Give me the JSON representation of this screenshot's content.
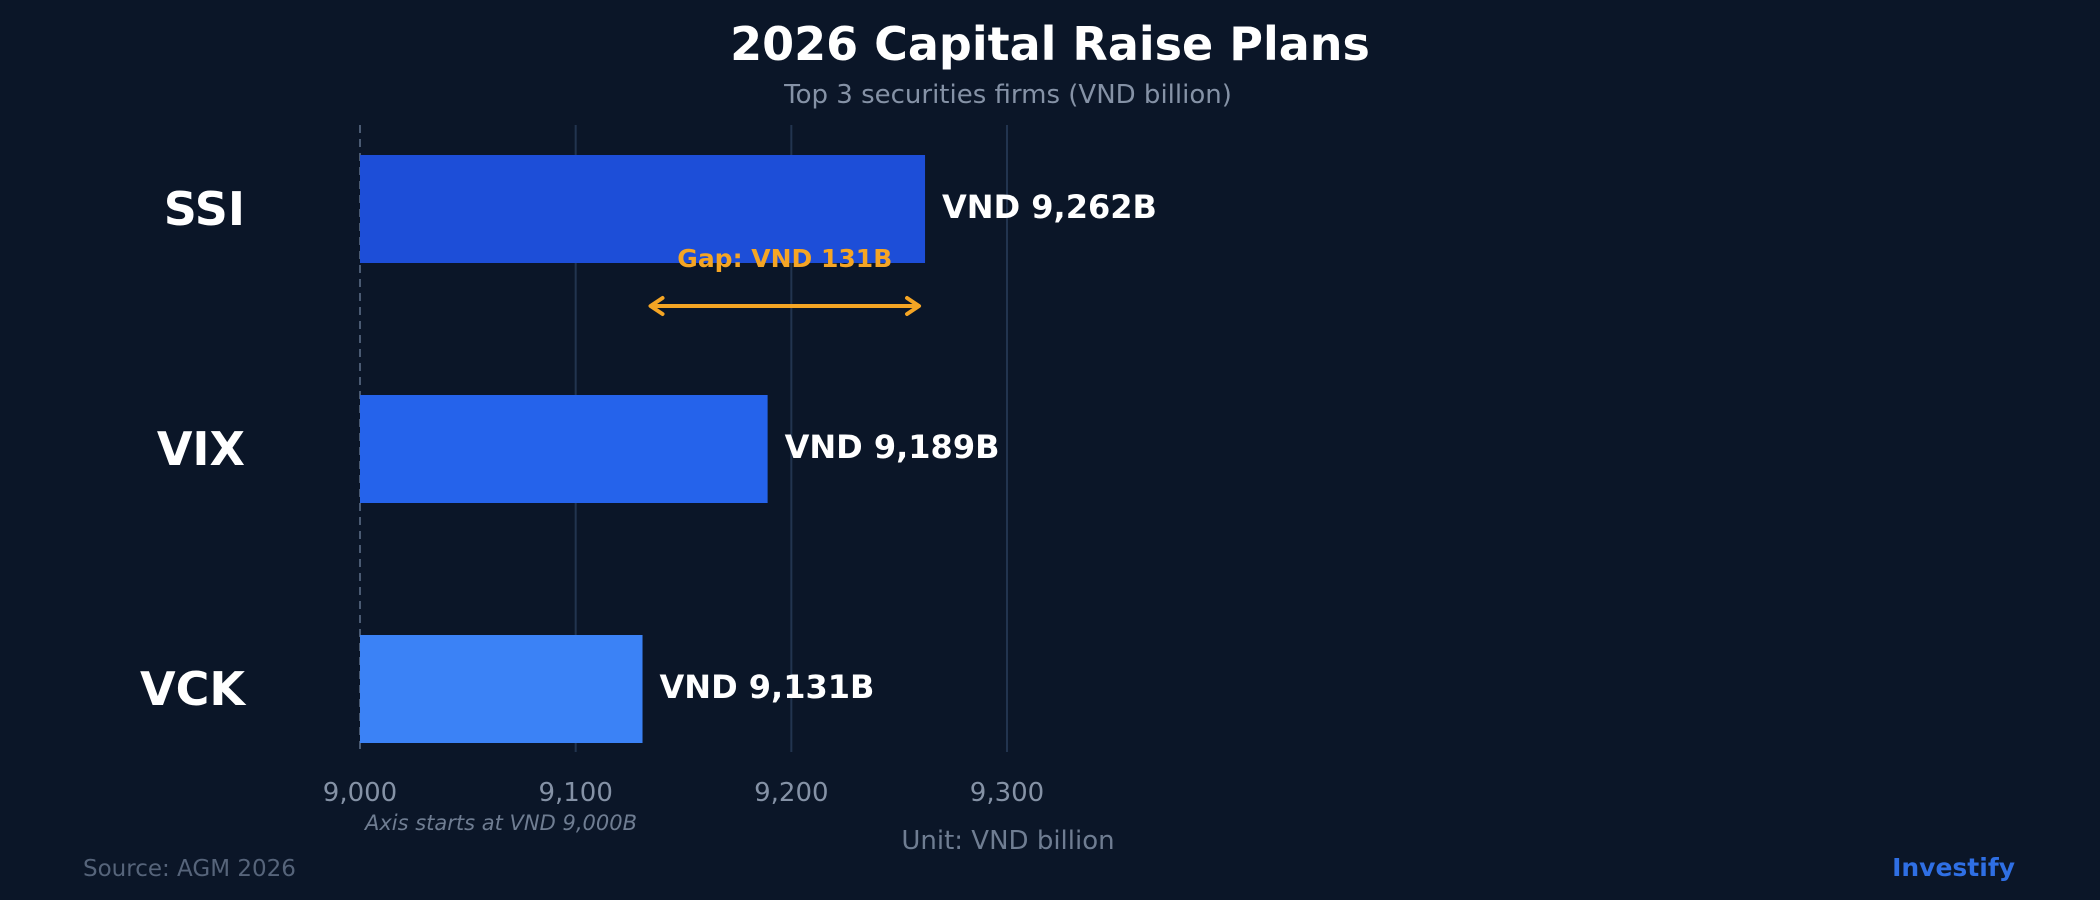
{
  "chart_data": {
    "type": "bar",
    "orientation": "horizontal",
    "title": "2026 Capital Raise Plans",
    "subtitle": "Top 3 securities firms (VND billion)",
    "categories": [
      "SSI",
      "VIX",
      "VCK"
    ],
    "values": [
      9262,
      9189,
      9131
    ],
    "data_labels": [
      "VND 9,262B",
      "VND 9,189B",
      "VND 9,131B"
    ],
    "bar_colors": [
      "#1d4ed8",
      "#2563eb",
      "#3b82f6"
    ],
    "xlim": [
      9000,
      9300
    ],
    "xticks": [
      9000,
      9100,
      9200,
      9300
    ],
    "xtick_labels": [
      "9,000",
      "9,100",
      "9,200",
      "9,300"
    ],
    "xlabel": "Unit: VND billion",
    "axis_note": "Axis starts at VND 9,000B",
    "grid": "vertical",
    "annotation": {
      "text": "Gap: VND 131B",
      "from": 9131,
      "to": 9262,
      "color": "#f5a524"
    }
  },
  "footer": {
    "source": "Source: AGM 2026",
    "brand": "Investify",
    "brand_color": "#2f6fe4"
  },
  "colors": {
    "background": "#0b1628",
    "grid": "#22344f",
    "text": "#ffffff",
    "muted": "#8592a6"
  }
}
